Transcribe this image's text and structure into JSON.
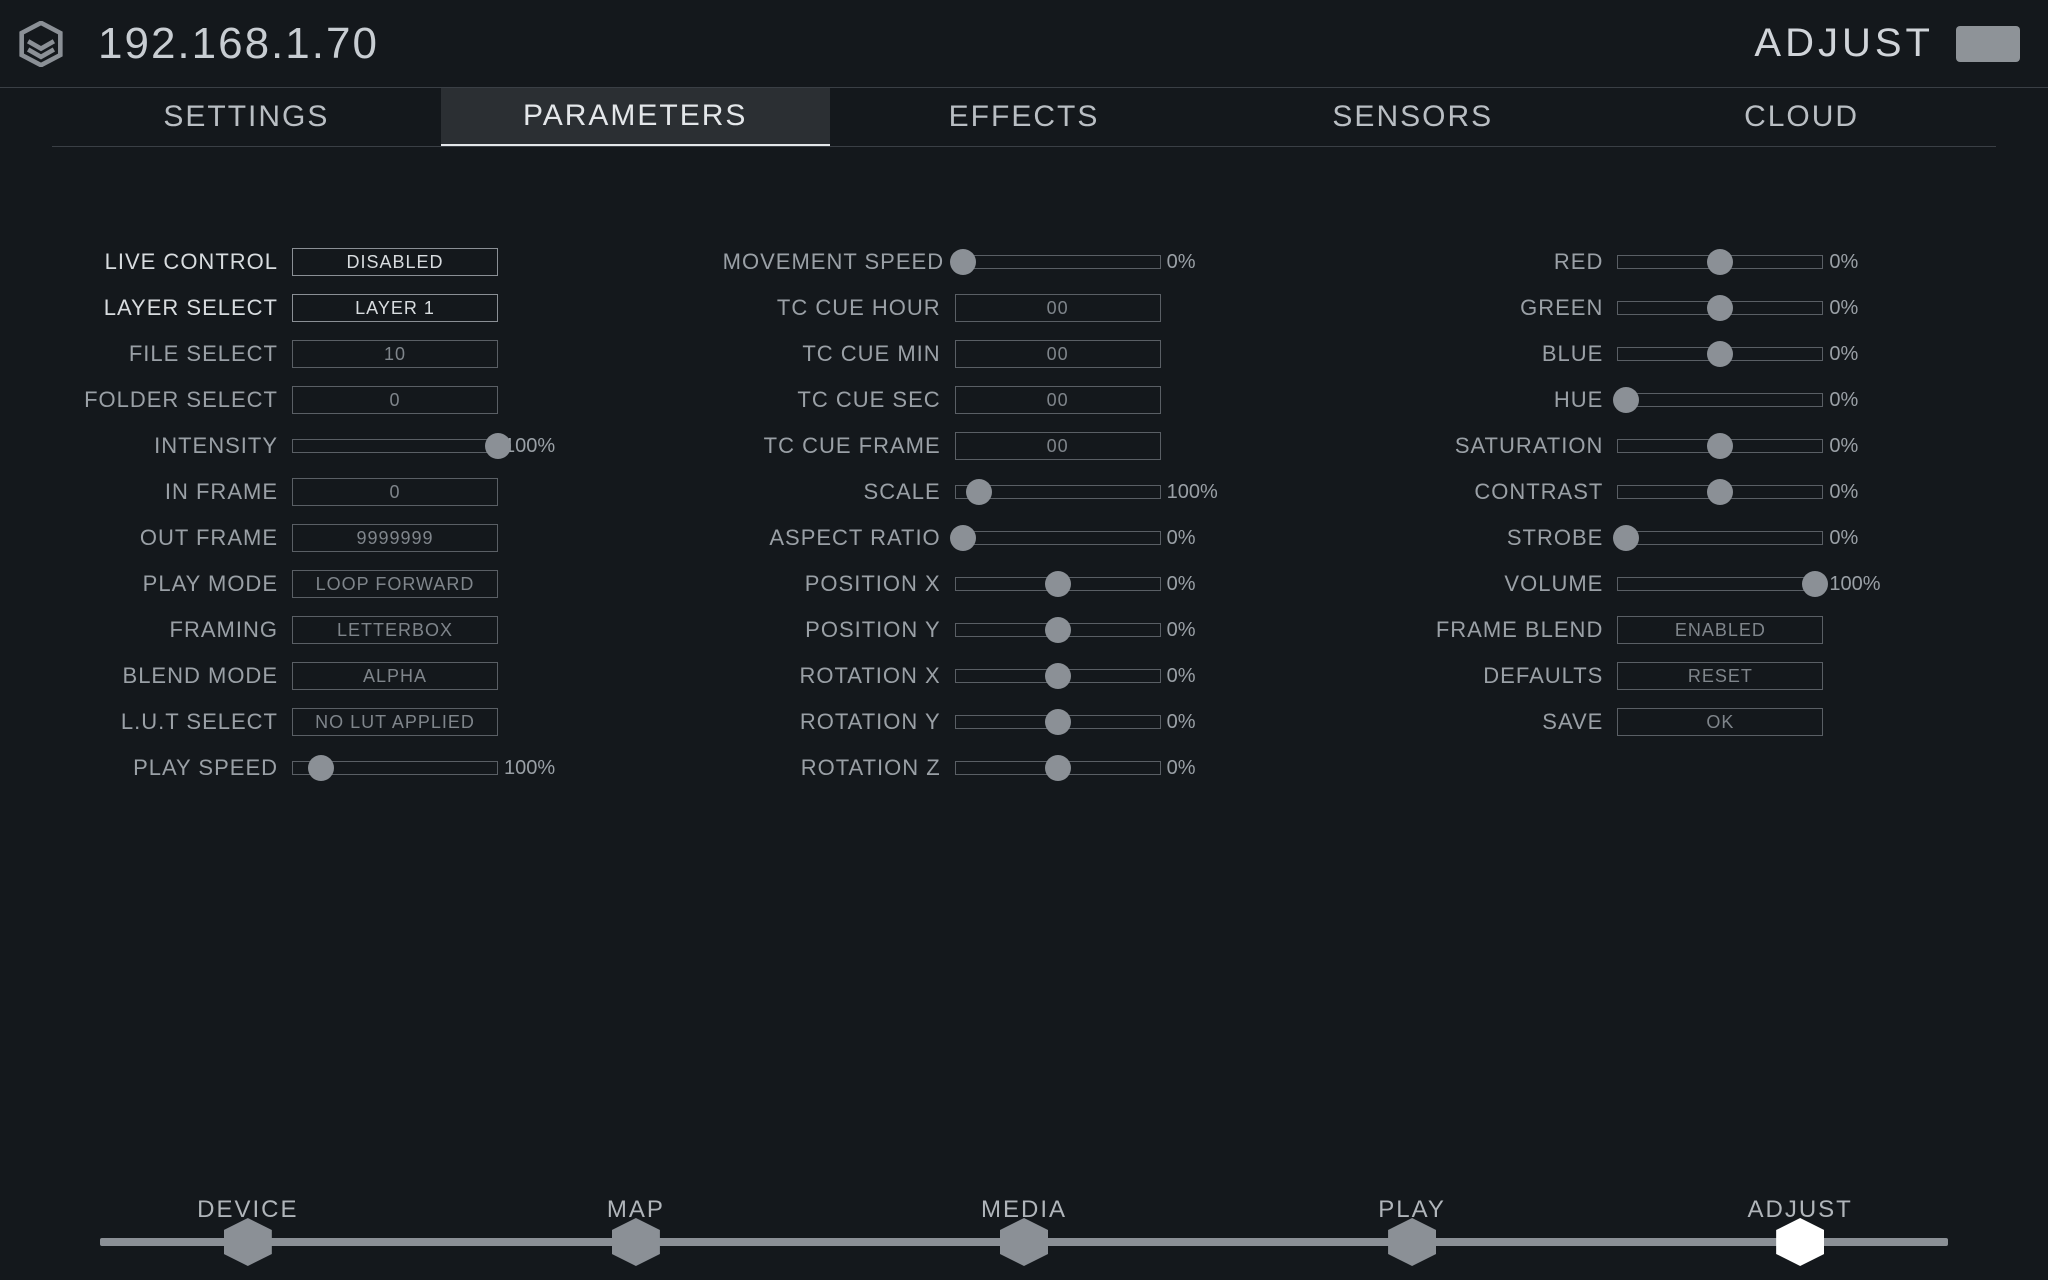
{
  "colors": {
    "background": "#14181c",
    "text_dim": "#9aa0a6",
    "text_bright": "#d8dcdf",
    "border": "#5a5f65",
    "slider_thumb": "#8b9096",
    "tab_active_bg": "#2b2f33",
    "header_box": "#8e9398"
  },
  "header": {
    "ip": "192.168.1.70",
    "right_label": "ADJUST"
  },
  "tabs": [
    {
      "label": "SETTINGS",
      "active": false
    },
    {
      "label": "PARAMETERS",
      "active": true
    },
    {
      "label": "EFFECTS",
      "active": false
    },
    {
      "label": "SENSORS",
      "active": false
    },
    {
      "label": "CLOUD",
      "active": false
    }
  ],
  "col1": [
    {
      "type": "box",
      "label": "LIVE CONTROL",
      "value": "DISABLED",
      "bright": true
    },
    {
      "type": "box",
      "label": "LAYER SELECT",
      "value": "LAYER 1",
      "bright": true
    },
    {
      "type": "box",
      "label": "FILE SELECT",
      "value": "10"
    },
    {
      "type": "box",
      "label": "FOLDER SELECT",
      "value": "0"
    },
    {
      "type": "slider",
      "label": "INTENSITY",
      "percent": 100,
      "suffix": "100%"
    },
    {
      "type": "box",
      "label": "IN FRAME",
      "value": "0"
    },
    {
      "type": "box",
      "label": "OUT FRAME",
      "value": "9999999"
    },
    {
      "type": "box",
      "label": "PLAY MODE",
      "value": "LOOP FORWARD"
    },
    {
      "type": "box",
      "label": "FRAMING",
      "value": "LETTERBOX"
    },
    {
      "type": "box",
      "label": "BLEND MODE",
      "value": "ALPHA"
    },
    {
      "type": "box",
      "label": "L.U.T SELECT",
      "value": "NO LUT APPLIED"
    },
    {
      "type": "slider",
      "label": "PLAY SPEED",
      "percent": 14,
      "suffix": "100%"
    }
  ],
  "col2": [
    {
      "type": "slider",
      "label": "MOVEMENT SPEED",
      "percent": 4,
      "suffix": "0%"
    },
    {
      "type": "box",
      "label": "TC CUE HOUR",
      "value": "00"
    },
    {
      "type": "box",
      "label": "TC CUE MIN",
      "value": "00"
    },
    {
      "type": "box",
      "label": "TC CUE SEC",
      "value": "00"
    },
    {
      "type": "box",
      "label": "TC CUE FRAME",
      "value": "00"
    },
    {
      "type": "slider",
      "label": "SCALE",
      "percent": 12,
      "suffix": "100%"
    },
    {
      "type": "slider",
      "label": "ASPECT RATIO",
      "percent": 4,
      "suffix": "0%"
    },
    {
      "type": "slider",
      "label": "POSITION X",
      "percent": 50,
      "suffix": "0%"
    },
    {
      "type": "slider",
      "label": "POSITION Y",
      "percent": 50,
      "suffix": "0%"
    },
    {
      "type": "slider",
      "label": "ROTATION X",
      "percent": 50,
      "suffix": "0%"
    },
    {
      "type": "slider",
      "label": "ROTATION Y",
      "percent": 50,
      "suffix": "0%"
    },
    {
      "type": "slider",
      "label": "ROTATION Z",
      "percent": 50,
      "suffix": "0%"
    }
  ],
  "col3": [
    {
      "type": "slider",
      "label": "RED",
      "percent": 50,
      "suffix": "0%"
    },
    {
      "type": "slider",
      "label": "GREEN",
      "percent": 50,
      "suffix": "0%"
    },
    {
      "type": "slider",
      "label": "BLUE",
      "percent": 50,
      "suffix": "0%"
    },
    {
      "type": "slider",
      "label": "HUE",
      "percent": 4,
      "suffix": "0%"
    },
    {
      "type": "slider",
      "label": "SATURATION",
      "percent": 50,
      "suffix": "0%"
    },
    {
      "type": "slider",
      "label": "CONTRAST",
      "percent": 50,
      "suffix": "0%"
    },
    {
      "type": "slider",
      "label": "STROBE",
      "percent": 4,
      "suffix": "0%"
    },
    {
      "type": "slider",
      "label": "VOLUME",
      "percent": 96,
      "suffix": "100%"
    },
    {
      "type": "box",
      "label": "FRAME BLEND",
      "value": "ENABLED"
    },
    {
      "type": "box",
      "label": "DEFAULTS",
      "value": "RESET"
    },
    {
      "type": "box",
      "label": "SAVE",
      "value": "OK"
    }
  ],
  "bottom_nav": {
    "items": [
      {
        "label": "DEVICE",
        "active": false
      },
      {
        "label": "MAP",
        "active": false
      },
      {
        "label": "MEDIA",
        "active": false
      },
      {
        "label": "PLAY",
        "active": false
      },
      {
        "label": "ADJUST",
        "active": true
      }
    ]
  }
}
